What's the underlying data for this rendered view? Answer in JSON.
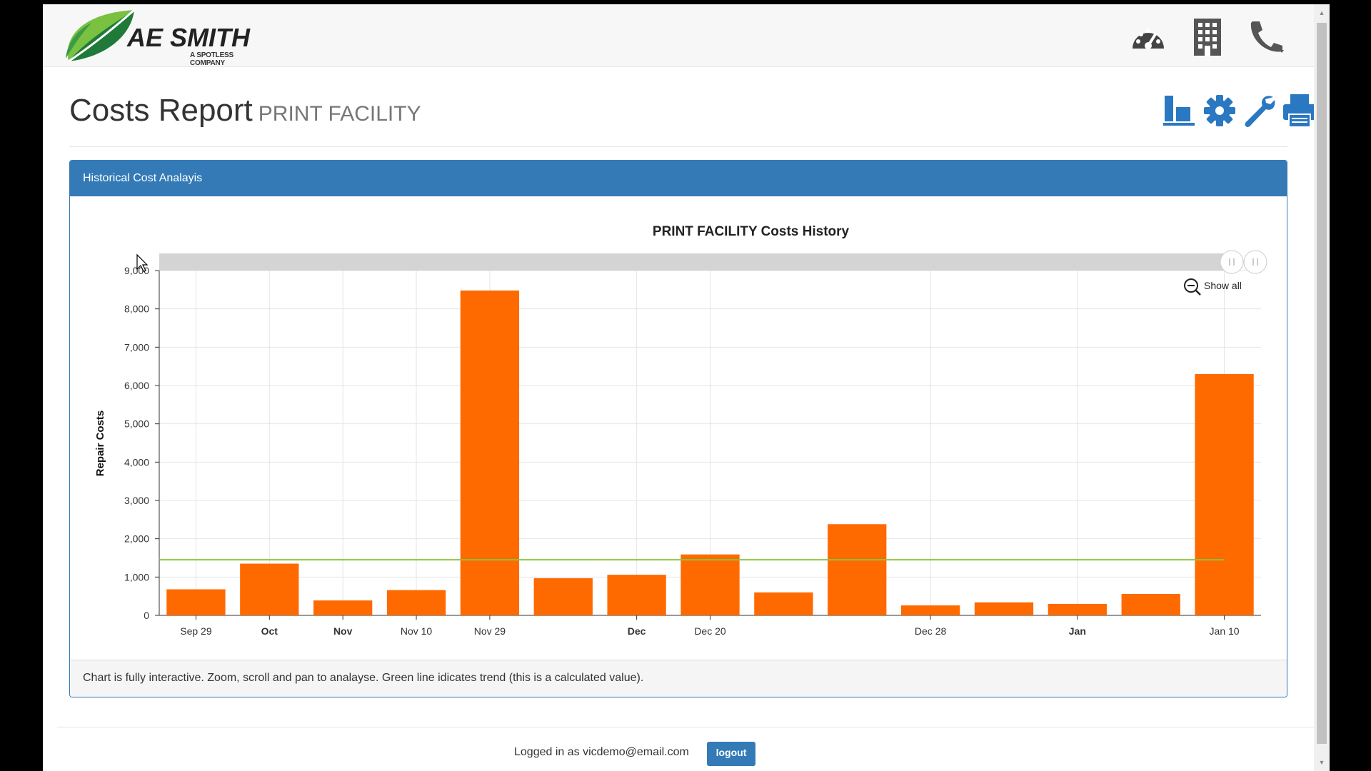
{
  "brand": {
    "name": "AE SMITH",
    "tagline": "A SPOTLESS COMPANY"
  },
  "header": {
    "icons": [
      "dashboard-gauge-icon",
      "building-icon",
      "phone-icon"
    ]
  },
  "page": {
    "title": "Costs Report",
    "subtitle": "PRINT FACILITY",
    "tools": [
      "report-chart-icon",
      "gear-icon",
      "wrench-icon",
      "print-icon"
    ]
  },
  "panel": {
    "heading": "Historical Cost Analayis",
    "footer": "Chart is fully interactive. Zoom, scroll and pan to analayse. Green line idicates trend (this is a calculated value).",
    "show_all": "Show all"
  },
  "chart_data": {
    "type": "bar",
    "title": "PRINT FACILITY Costs History",
    "ylabel": "Repair Costs",
    "xlabel": "",
    "ylim": [
      0,
      9000
    ],
    "yticks": [
      "0",
      "1,000",
      "2,000",
      "3,000",
      "4,000",
      "5,000",
      "6,000",
      "7,000",
      "8,000",
      "9,000"
    ],
    "x_tick_labels": [
      {
        "label": "Sep 29",
        "bold": false,
        "at": 0
      },
      {
        "label": "Oct",
        "bold": true,
        "at": 1
      },
      {
        "label": "Nov",
        "bold": true,
        "at": 2
      },
      {
        "label": "Nov 10",
        "bold": false,
        "at": 3
      },
      {
        "label": "Nov 29",
        "bold": false,
        "at": 4
      },
      {
        "label": "Dec",
        "bold": true,
        "at": 6
      },
      {
        "label": "Dec 20",
        "bold": false,
        "at": 7
      },
      {
        "label": "Dec 28",
        "bold": false,
        "at": 10
      },
      {
        "label": "Jan",
        "bold": true,
        "at": 12
      },
      {
        "label": "Jan 10",
        "bold": false,
        "at": 14
      }
    ],
    "values": [
      680,
      1350,
      390,
      660,
      8480,
      970,
      1060,
      1590,
      600,
      2380,
      260,
      340,
      300,
      560,
      6300
    ],
    "trend": 1450,
    "colors": {
      "bar": "#ff6a00",
      "trend": "#8cc63f",
      "grid": "#e4e4e4",
      "scrollbar": "#d4d4d4"
    },
    "grid": true
  },
  "session": {
    "logged_in_text": "Logged in as vicdemo@email.com",
    "logout_label": "logout"
  }
}
